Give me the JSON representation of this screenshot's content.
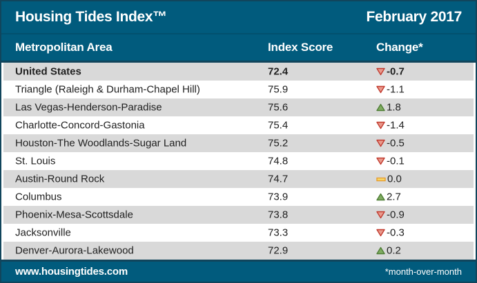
{
  "header": {
    "title": "Housing Tides Index™",
    "date": "February 2017"
  },
  "chart_data": {
    "type": "table",
    "title": "Housing Tides Index™",
    "period": "February 2017",
    "columns": [
      "Metropolitan Area",
      "Index Score",
      "Change*"
    ],
    "rows": [
      {
        "area": "United States",
        "score": 72.4,
        "change": -0.7,
        "emphasis": true
      },
      {
        "area": "Triangle (Raleigh & Durham-Chapel Hill)",
        "score": 75.9,
        "change": -1.1
      },
      {
        "area": "Las Vegas-Henderson-Paradise",
        "score": 75.6,
        "change": 1.8
      },
      {
        "area": "Charlotte-Concord-Gastonia",
        "score": 75.4,
        "change": -1.4
      },
      {
        "area": "Houston-The Woodlands-Sugar Land",
        "score": 75.2,
        "change": -0.5
      },
      {
        "area": "St. Louis",
        "score": 74.8,
        "change": -0.1
      },
      {
        "area": "Austin-Round Rock",
        "score": 74.7,
        "change": 0.0
      },
      {
        "area": "Columbus",
        "score": 73.9,
        "change": 2.7
      },
      {
        "area": "Phoenix-Mesa-Scottsdale",
        "score": 73.8,
        "change": -0.9
      },
      {
        "area": "Jacksonville",
        "score": 73.3,
        "change": -0.3
      },
      {
        "area": "Denver-Aurora-Lakewood",
        "score": 72.9,
        "change": 0.2
      }
    ],
    "footnote": "*month-over-month",
    "legend": {
      "up": "increase (green up triangle)",
      "down": "decrease (red down triangle)",
      "flat": "no change (amber bar)"
    }
  },
  "footer": {
    "website": "www.housingtides.com",
    "note": "*month-over-month"
  },
  "colors": {
    "brand_teal": "#015B7D",
    "teal_dark_line": "#02506E",
    "border_dark": "#11455C",
    "row_stripe": "#D9D9D9",
    "text": "#212121",
    "up_fill": "#7FAC60",
    "up_stroke": "#4E7D35",
    "down_fill": "#E9998C",
    "down_stroke": "#C13A2E",
    "flat_fill": "#F6D96B",
    "flat_stroke": "#E89C2C"
  }
}
